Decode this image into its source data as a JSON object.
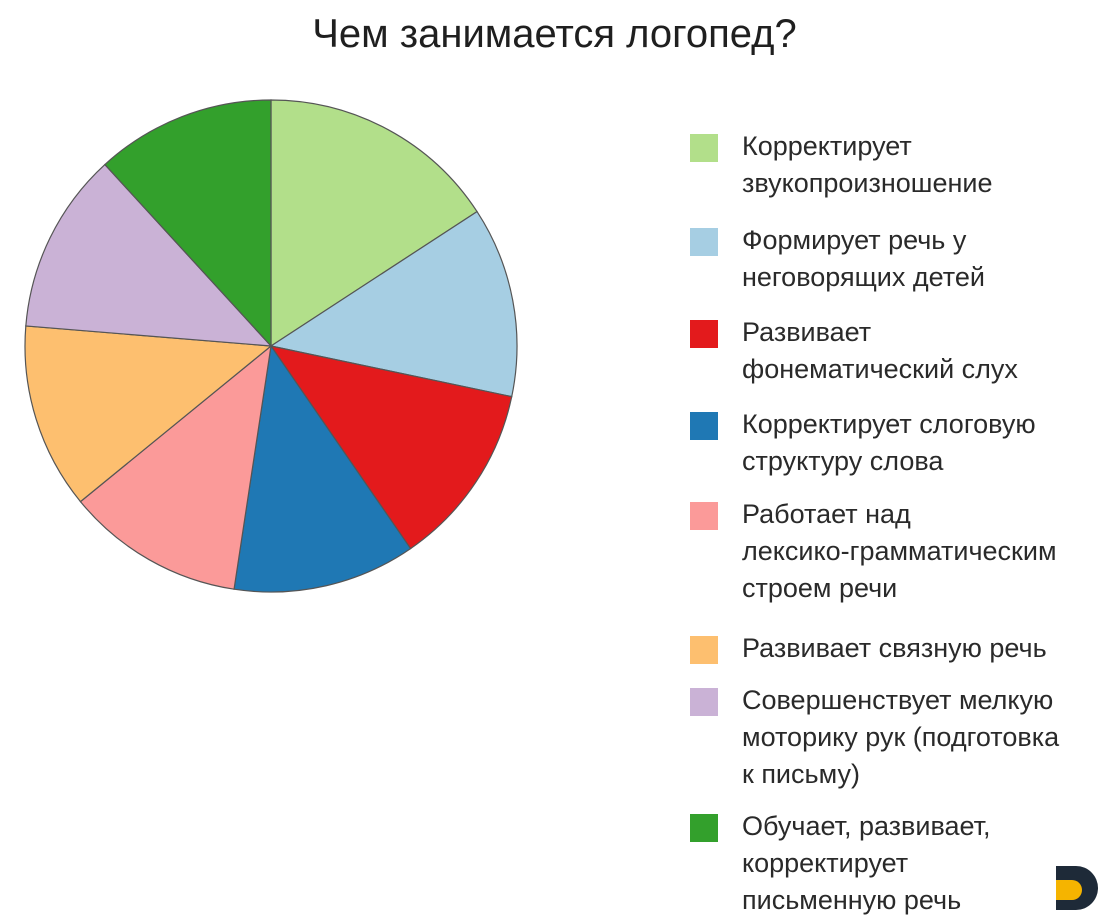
{
  "chart_data": {
    "type": "pie",
    "title": "Чем занимается логопед?",
    "start_angle_deg": 0,
    "direction": "clockwise",
    "legend_position": "right",
    "slices": [
      {
        "label": "Корректирует\nзвукопроизношение",
        "value": 15.8,
        "color": "#b2df8a"
      },
      {
        "label": "Формирует речь у\nнеговорящих детей",
        "value": 12.5,
        "color": "#a6cee3"
      },
      {
        "label": "Развивает\nфонематический слух",
        "value": 12.1,
        "color": "#e31a1c"
      },
      {
        "label": "Корректирует слоговую\nструктуру слова",
        "value": 12.0,
        "color": "#1f78b4"
      },
      {
        "label": "Работает над\nлексико-грамматическим\nстроем речи",
        "value": 11.7,
        "color": "#fb9a99"
      },
      {
        "label": "Развивает связную речь",
        "value": 12.2,
        "color": "#fdbf6f"
      },
      {
        "label": "Совершенствует мелкую\nмоторику рук (подготовка\nк письму)",
        "value": 11.9,
        "color": "#cab2d6"
      },
      {
        "label": "Обучает, развивает,\nкорректирует\nписьменную речь",
        "value": 11.8,
        "color": "#33a02c"
      }
    ]
  },
  "colors": {
    "slice_stroke": "#555555",
    "logo_orange": "#f5b400",
    "logo_dark": "#1e2a38"
  }
}
